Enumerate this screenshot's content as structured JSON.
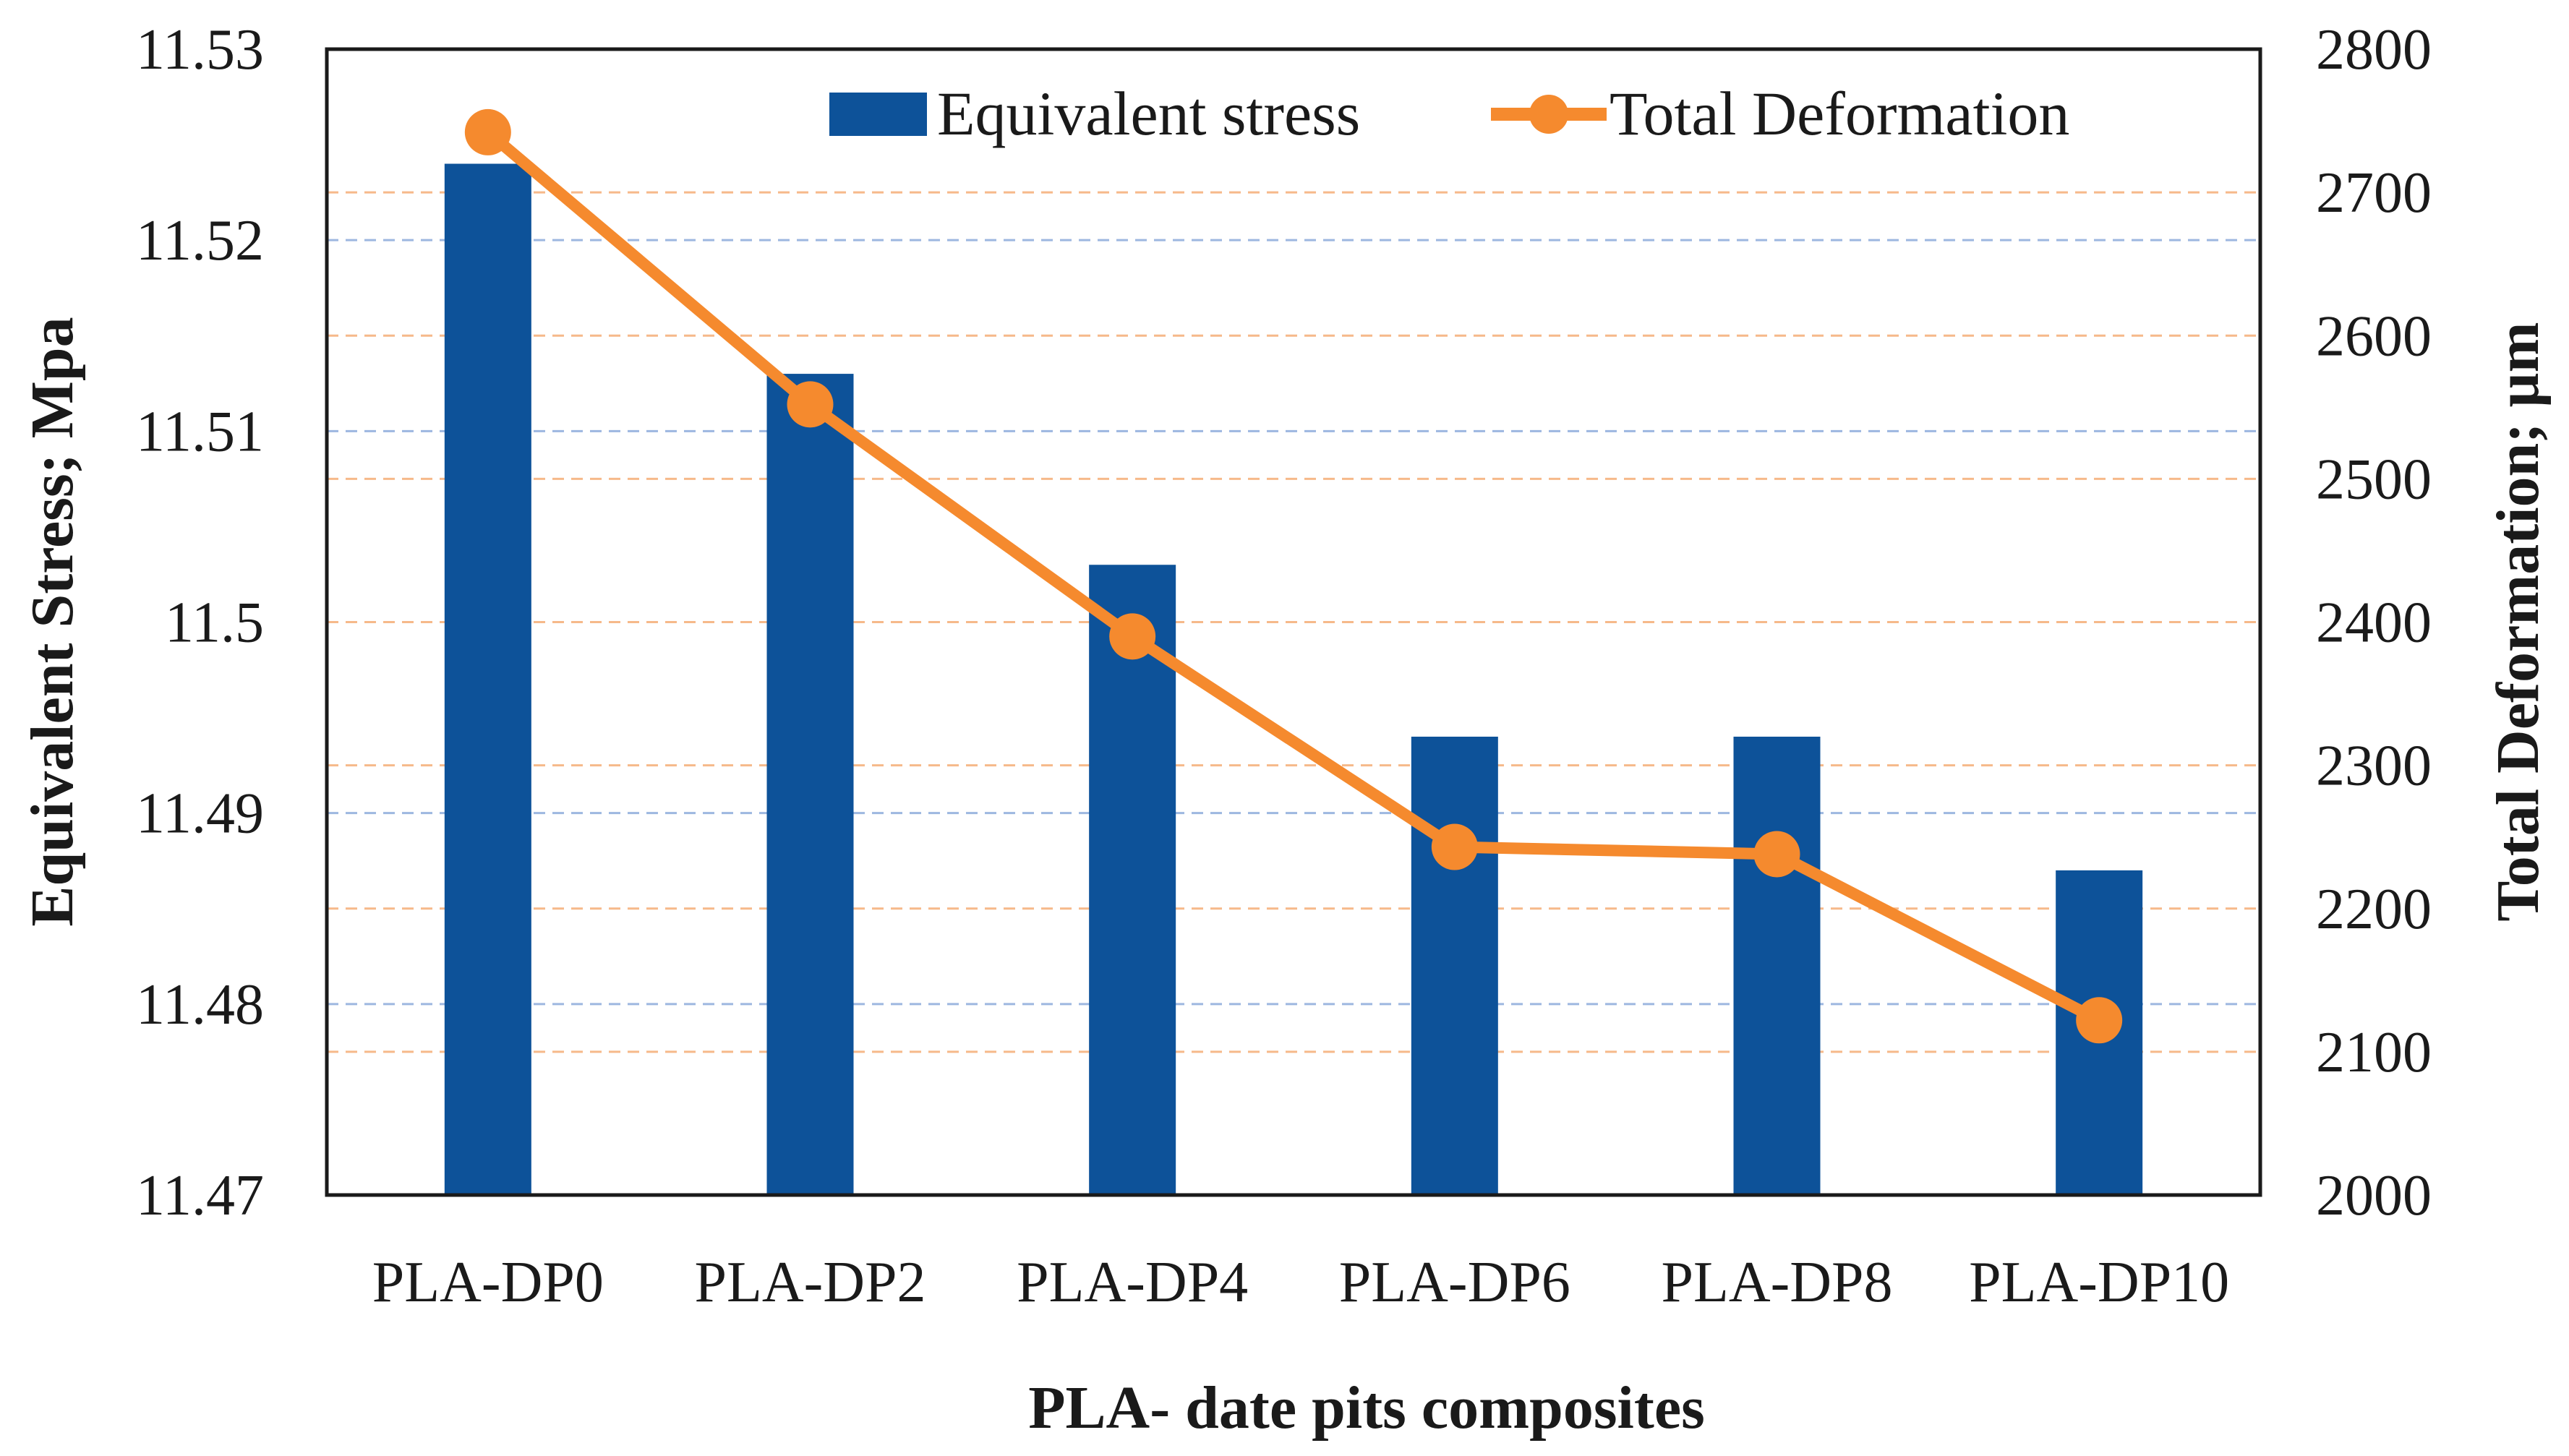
{
  "chart_data": {
    "type": "bar",
    "categories": [
      "PLA-DP0",
      "PLA-DP2",
      "PLA-DP4",
      "PLA-DP6",
      "PLA-DP8",
      "PLA-DP10"
    ],
    "series": [
      {
        "name": "Equivalent stress",
        "type": "bar",
        "axis": "left",
        "values": [
          11.524,
          11.513,
          11.503,
          11.494,
          11.494,
          11.487
        ],
        "color": "#0d5299"
      },
      {
        "name": "Total Deformation",
        "type": "line",
        "axis": "right",
        "values": [
          2742,
          2552,
          2390,
          2243,
          2238,
          2122
        ],
        "color": "#f58a2e"
      }
    ],
    "xlabel": "PLA- date pits composites",
    "ylabel": "Equivalent Stress; Mpa",
    "y2label": "Total Deformation; µm",
    "ylim": [
      11.47,
      11.53
    ],
    "y2lim": [
      2000,
      2800
    ],
    "yticks": [
      "11.47",
      "11.48",
      "11.49",
      "11.5",
      "11.51",
      "11.52",
      "11.53"
    ],
    "y2ticks": [
      "2000",
      "2100",
      "2200",
      "2300",
      "2400",
      "2500",
      "2600",
      "2700",
      "2800"
    ],
    "grid": true,
    "legend": "top"
  }
}
